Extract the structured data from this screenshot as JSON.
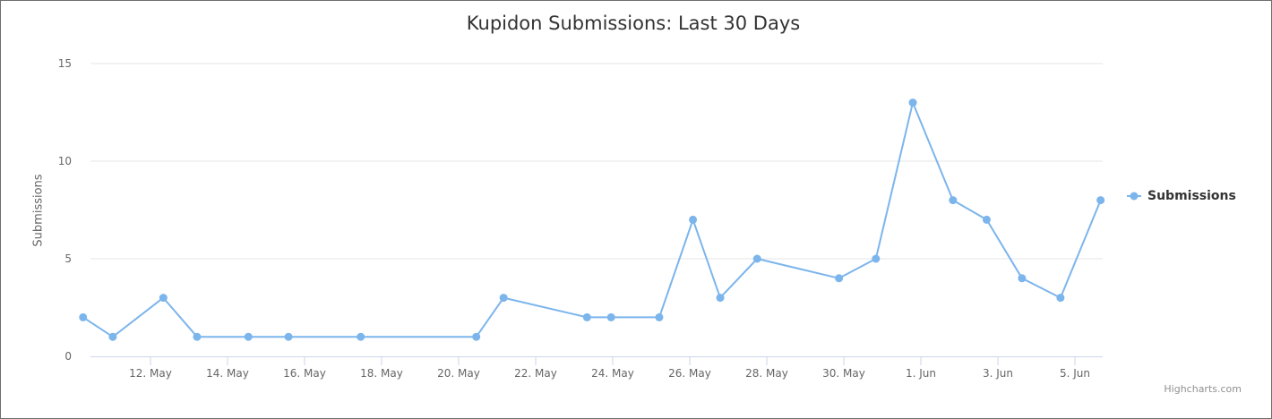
{
  "chart_data": {
    "type": "line",
    "title": "Kupidon Submissions: Last 30 Days",
    "ylabel": "Submissions",
    "xlabel": "",
    "ylim": [
      0,
      15
    ],
    "yticks": [
      "0",
      "5",
      "10",
      "15"
    ],
    "xlim": [
      "2019-05-10",
      "2019-06-05"
    ],
    "xticks": [
      {
        "date": "2019-05-12",
        "label": "12. May"
      },
      {
        "date": "2019-05-14",
        "label": "14. May"
      },
      {
        "date": "2019-05-16",
        "label": "16. May"
      },
      {
        "date": "2019-05-18",
        "label": "18. May"
      },
      {
        "date": "2019-05-20",
        "label": "20. May"
      },
      {
        "date": "2019-05-22",
        "label": "22. May"
      },
      {
        "date": "2019-05-24",
        "label": "24. May"
      },
      {
        "date": "2019-05-26",
        "label": "26. May"
      },
      {
        "date": "2019-05-28",
        "label": "28. May"
      },
      {
        "date": "2019-05-30",
        "label": "30. May"
      },
      {
        "date": "2019-06-01",
        "label": "1. Jun"
      },
      {
        "date": "2019-06-03",
        "label": "3. Jun"
      },
      {
        "date": "2019-06-05",
        "label": "5. Jun"
      }
    ],
    "grid": true,
    "legend_position": "right",
    "series": [
      {
        "name": "Submissions",
        "color": "#7cb5ec",
        "points": [
          {
            "x": "2019-05-10 06:00",
            "y": 2
          },
          {
            "x": "2019-05-11 00:30",
            "y": 1
          },
          {
            "x": "2019-05-12 08:00",
            "y": 3
          },
          {
            "x": "2019-05-13 05:00",
            "y": 1
          },
          {
            "x": "2019-05-14 13:00",
            "y": 1
          },
          {
            "x": "2019-05-15 14:00",
            "y": 1
          },
          {
            "x": "2019-05-17 11:00",
            "y": 1
          },
          {
            "x": "2019-05-20 11:00",
            "y": 1
          },
          {
            "x": "2019-05-21 04:00",
            "y": 3
          },
          {
            "x": "2019-05-23 08:00",
            "y": 2
          },
          {
            "x": "2019-05-23 23:00",
            "y": 2
          },
          {
            "x": "2019-05-25 05:00",
            "y": 2
          },
          {
            "x": "2019-05-26 02:00",
            "y": 7
          },
          {
            "x": "2019-05-26 19:00",
            "y": 3
          },
          {
            "x": "2019-05-27 18:00",
            "y": 5
          },
          {
            "x": "2019-05-29 21:00",
            "y": 4
          },
          {
            "x": "2019-05-30 20:00",
            "y": 5
          },
          {
            "x": "2019-05-31 19:00",
            "y": 13
          },
          {
            "x": "2019-06-01 20:00",
            "y": 8
          },
          {
            "x": "2019-06-02 17:00",
            "y": 7
          },
          {
            "x": "2019-06-03 15:00",
            "y": 4
          },
          {
            "x": "2019-06-04 15:00",
            "y": 3
          },
          {
            "x": "2019-06-05 16:00",
            "y": 8
          }
        ]
      }
    ]
  },
  "credit": "Highcharts.com"
}
